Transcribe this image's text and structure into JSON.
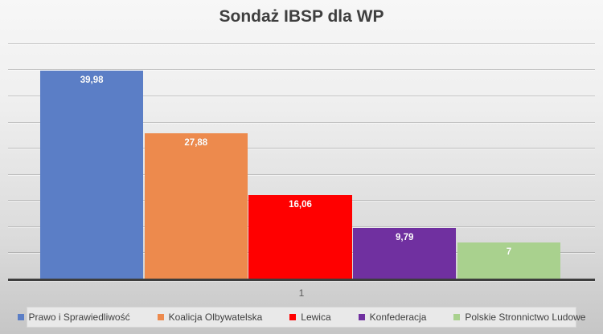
{
  "chart_data": {
    "type": "bar",
    "title": "Sondaż IBSP dla WP",
    "categories": [
      "1"
    ],
    "series": [
      {
        "name": "Prawo i Sprawiedliwość",
        "value": 39.98,
        "label": "39,98",
        "color": "#5B7EC6"
      },
      {
        "name": "Koalicja Olbywatelska",
        "value": 27.88,
        "label": "27,88",
        "color": "#ED8A4D"
      },
      {
        "name": "Lewica",
        "value": 16.06,
        "label": "16,06",
        "color": "#FF0000"
      },
      {
        "name": "Konfederacja",
        "value": 9.79,
        "label": "9,79",
        "color": "#7030A0"
      },
      {
        "name": "Polskie Stronnictwo Ludowe",
        "value": 7,
        "label": "7",
        "color": "#A9D18E"
      }
    ],
    "xlabel": "",
    "ylabel": "",
    "ylim": [
      0,
      46.5
    ],
    "grid": true,
    "grid_step": 5,
    "grid_max": 45,
    "legend_position": "bottom",
    "value_label_color": "#FFFFFF",
    "axis_line_color": "#3d3d3d"
  }
}
